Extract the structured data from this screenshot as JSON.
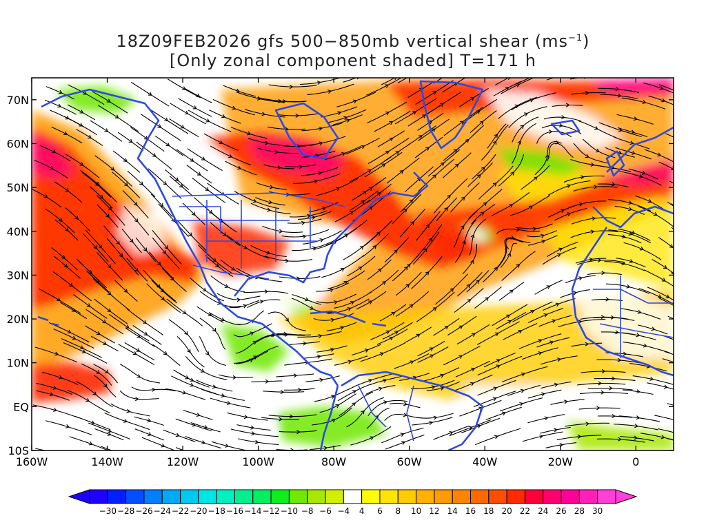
{
  "title": {
    "line1_main": "18Z09FEB2026 gfs 500−850mb vertical shear (ms",
    "line1_sup": "−1",
    "line1_end": ")",
    "line2": "[Only zonal component shaded] T=171 h"
  },
  "map": {
    "lon_range": [
      -160,
      10
    ],
    "lat_range": [
      -10,
      75
    ],
    "lat_labels": [
      {
        "lat": 70,
        "text": "70N"
      },
      {
        "lat": 60,
        "text": "60N"
      },
      {
        "lat": 50,
        "text": "50N"
      },
      {
        "lat": 40,
        "text": "40N"
      },
      {
        "lat": 30,
        "text": "30N"
      },
      {
        "lat": 20,
        "text": "20N"
      },
      {
        "lat": 10,
        "text": "10N"
      },
      {
        "lat": 0,
        "text": "EQ"
      },
      {
        "lat": -10,
        "text": "10S"
      }
    ],
    "lon_labels": [
      {
        "lon": -160,
        "text": "160W"
      },
      {
        "lon": -140,
        "text": "140W"
      },
      {
        "lon": -120,
        "text": "120W"
      },
      {
        "lon": -100,
        "text": "100W"
      },
      {
        "lon": -80,
        "text": "80W"
      },
      {
        "lon": -60,
        "text": "60W"
      },
      {
        "lon": -40,
        "text": "40W"
      },
      {
        "lon": -20,
        "text": "20W"
      },
      {
        "lon": 0,
        "text": "0"
      }
    ],
    "coastline_color": "#2d48e6",
    "streamline_color": "#000000"
  },
  "colorbar": {
    "labels": [
      "−30",
      "−28",
      "−26",
      "−24",
      "−22",
      "−20",
      "−18",
      "−16",
      "−14",
      "−12",
      "−10",
      "−8",
      "−6",
      "−4",
      "4",
      "6",
      "8",
      "10",
      "12",
      "14",
      "16",
      "18",
      "20",
      "22",
      "24",
      "26",
      "28",
      "30"
    ],
    "colors": [
      "#1e00ff",
      "#0020ff",
      "#0050ff",
      "#0080ff",
      "#00a8f8",
      "#00c8f0",
      "#00e6e6",
      "#00f0c0",
      "#00f090",
      "#00f060",
      "#10ee20",
      "#70e800",
      "#a8e800",
      "#d0f000",
      "#ffffff",
      "#ffff00",
      "#ffe400",
      "#ffcc00",
      "#ffb000",
      "#ff9a00",
      "#ff8400",
      "#ff6a00",
      "#ff4e00",
      "#ff2a00",
      "#ff0038",
      "#ff0070",
      "#ff0098",
      "#ff20b8",
      "#ff40d8"
    ],
    "min_arrow_color": "#1e00ff",
    "max_arrow_color": "#ff40d8"
  }
}
